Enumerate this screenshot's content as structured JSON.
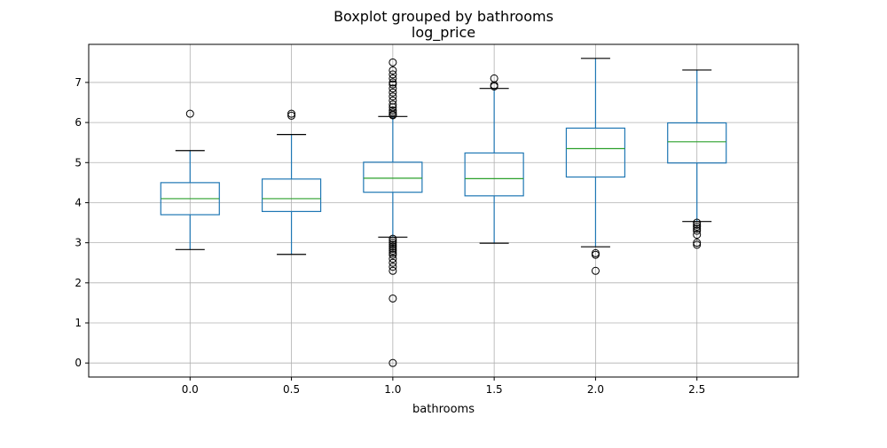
{
  "chart_data": {
    "type": "box",
    "suptitle": "Boxplot grouped by bathrooms",
    "title": "log_price",
    "xlabel": "bathrooms",
    "ylabel": "",
    "ylim": [
      -0.35,
      7.95
    ],
    "yticks": [
      0,
      1,
      2,
      3,
      4,
      5,
      6,
      7
    ],
    "grid": true,
    "colors": {
      "box": "#1f77b4",
      "median": "#2ca02c",
      "whisker": "#1f77b4",
      "cap": "#000000",
      "flier": "#000000",
      "grid": "#b0b0b0"
    },
    "categories": [
      "0.0",
      "0.5",
      "1.0",
      "1.5",
      "2.0",
      "2.5"
    ],
    "boxes": [
      {
        "label": "0.0",
        "whislo": 2.83,
        "q1": 3.7,
        "med": 4.1,
        "q3": 4.5,
        "whishi": 5.3,
        "fliers": [
          6.22
        ]
      },
      {
        "label": "0.5",
        "whislo": 2.71,
        "q1": 3.78,
        "med": 4.1,
        "q3": 4.59,
        "whishi": 5.7,
        "fliers": [
          6.17,
          6.22
        ]
      },
      {
        "label": "1.0",
        "whislo": 3.14,
        "q1": 4.26,
        "med": 4.61,
        "q3": 5.01,
        "whishi": 6.15,
        "fliers": [
          7.5,
          7.3,
          7.2,
          7.1,
          7.0,
          6.95,
          6.85,
          6.75,
          6.65,
          6.55,
          6.45,
          6.38,
          6.3,
          6.25,
          6.2,
          6.18,
          3.1,
          3.05,
          3.0,
          2.95,
          2.9,
          2.85,
          2.8,
          2.75,
          2.7,
          2.6,
          2.5,
          2.4,
          2.3,
          1.61,
          0.0
        ]
      },
      {
        "label": "1.5",
        "whislo": 2.99,
        "q1": 4.17,
        "med": 4.6,
        "q3": 5.24,
        "whishi": 6.85,
        "fliers": [
          6.9,
          6.93,
          7.1
        ]
      },
      {
        "label": "2.0",
        "whislo": 2.9,
        "q1": 4.64,
        "med": 5.35,
        "q3": 5.86,
        "whishi": 7.6,
        "fliers": [
          2.7,
          2.74,
          2.3
        ]
      },
      {
        "label": "2.5",
        "whislo": 3.53,
        "q1": 4.99,
        "med": 5.52,
        "q3": 5.99,
        "whishi": 7.31,
        "fliers": [
          3.5,
          3.45,
          3.4,
          3.35,
          3.3,
          3.2,
          3.0,
          2.95
        ]
      }
    ]
  }
}
